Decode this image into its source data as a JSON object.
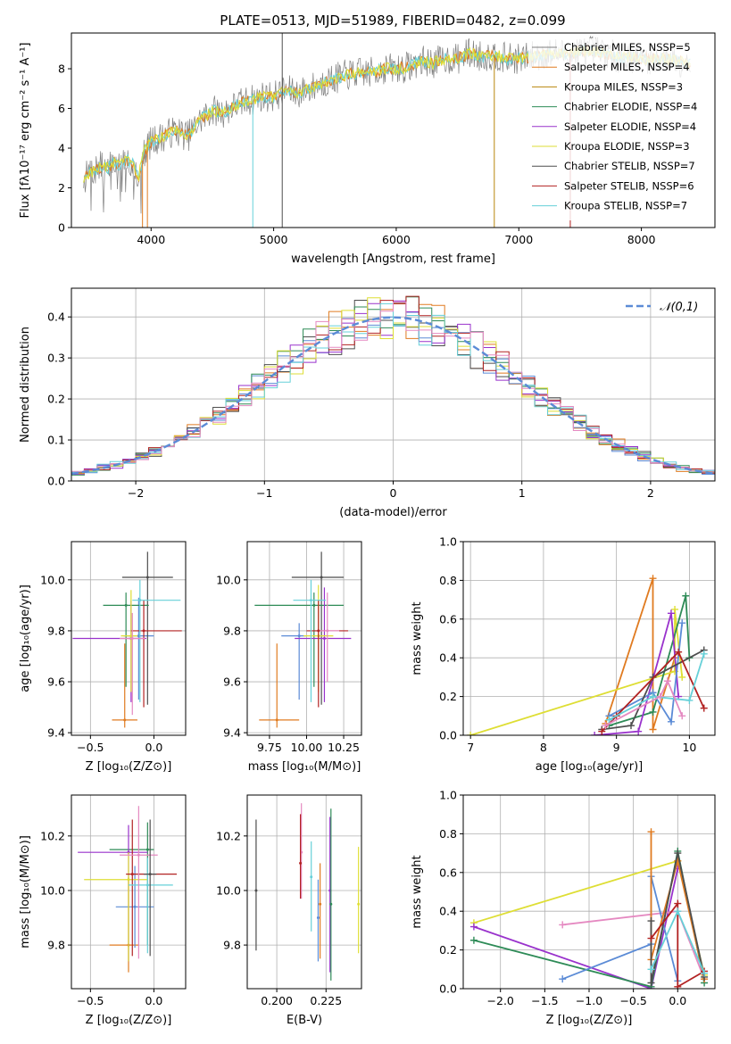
{
  "title": "PLATE=0513, MJD=51989, FIBERID=0482, z=0.099",
  "colors": [
    "#ff7f0e",
    "#4e4e4e",
    "#b8860b",
    "#2e8b57",
    "#9932cc",
    "#dede34",
    "#555555",
    "#b22222",
    "#66d0d8"
  ],
  "chart_data": [
    {
      "type": "line",
      "id": "spectrum",
      "xlabel": "wavelength [Angstrom, rest frame]",
      "ylabel": "Flux [fλ10⁻¹⁷ erg cm⁻² s⁻¹ A⁻¹]",
      "xlim": [
        3350,
        8600
      ],
      "ylim": [
        0,
        9.8
      ],
      "xticks": [
        4000,
        5000,
        6000,
        7000,
        8000
      ],
      "yticks": [
        0,
        2,
        4,
        6,
        8
      ],
      "grid": false,
      "legend_position": "top-right",
      "legend": [
        "Chabrier MILES, NSSP=5",
        "Salpeter MILES, NSSP=4",
        "Kroupa MILES, NSSP=3",
        "Chabrier ELODIE, NSSP=4",
        "Salpeter ELODIE, NSSP=4",
        "Kroupa ELODIE, NSSP=3",
        "Chabrier STELIB, NSSP=7",
        "Salpeter STELIB, NSSP=6",
        "Kroupa STELIB, NSSP=7"
      ],
      "legend_colors": [
        "#7f7f7f",
        "#e07b20",
        "#b8860b",
        "#2e8b57",
        "#9932cc",
        "#dede34",
        "#4e4e4e",
        "#b22222",
        "#66d0d8"
      ],
      "data_series": {
        "name": "data",
        "x": [
          3450,
          3500,
          3550,
          3600,
          3650,
          3700,
          3750,
          3800,
          3850,
          3900,
          3950,
          4000,
          4100,
          4200,
          4300,
          4400,
          4500,
          4600,
          4700,
          4800,
          4900,
          5000,
          5100,
          5200,
          5300,
          5400,
          5500,
          5600,
          5700,
          5800,
          5900,
          6000,
          6100,
          6200,
          6300,
          6400,
          6500,
          6600,
          6700,
          6800,
          6900,
          7000,
          7100,
          7200,
          7300,
          7400,
          7500,
          7600,
          7700,
          7800,
          7900,
          8000,
          8100,
          8200,
          8300,
          8400
        ],
        "y": [
          2.4,
          2.8,
          2.9,
          3.1,
          3.0,
          3.3,
          3.1,
          3.4,
          3.2,
          2.6,
          3.9,
          4.3,
          4.6,
          4.9,
          4.6,
          5.4,
          5.9,
          5.8,
          6.2,
          6.4,
          6.6,
          6.6,
          6.9,
          6.8,
          7.0,
          7.3,
          7.5,
          7.7,
          7.8,
          7.8,
          8.0,
          8.0,
          8.1,
          8.4,
          8.3,
          8.5,
          8.5,
          8.8,
          8.6,
          8.7,
          8.5,
          8.5,
          8.6,
          8.7,
          8.8,
          8.7,
          8.9,
          8.9,
          8.8,
          8.6,
          8.6,
          8.5,
          8.5,
          8.5,
          8.4,
          8.3
        ]
      },
      "model_series_x_range": [
        3450,
        7300
      ],
      "notable_lines_at": [
        3930,
        3970,
        4830,
        5070,
        6800,
        7420
      ]
    },
    {
      "type": "bar",
      "id": "residuals",
      "xlabel": "(data-model)/error",
      "ylabel": "Normed distribution",
      "xlim": [
        -2.5,
        2.5
      ],
      "ylim": [
        0,
        0.47
      ],
      "xticks": [
        -2,
        -1,
        0,
        1,
        2
      ],
      "yticks": [
        0.0,
        0.1,
        0.2,
        0.3,
        0.4
      ],
      "grid": true,
      "legend_position": "top-right",
      "gaussian_label": "𝒩(0,1)",
      "gaussian_color": "#5b8bd6",
      "bin_width": 0.1,
      "bin_start": -2.5
    },
    {
      "type": "scatter",
      "id": "age-vs-Z",
      "xlabel": "Z [log₁₀(Z/Z⊙)]",
      "ylabel": "age  [log₁₀(age/yr)]",
      "xlim": [
        -0.65,
        0.25
      ],
      "ylim": [
        9.39,
        10.15
      ],
      "xticks": [
        -0.5,
        0.0
      ],
      "yticks": [
        9.4,
        9.6,
        9.8,
        10.0
      ],
      "grid": true,
      "points": [
        {
          "x": -0.23,
          "y": 9.45,
          "xerr": [
            0.1,
            0.1
          ],
          "yerr": [
            0.03,
            0.3
          ],
          "color": "#e07b20"
        },
        {
          "x": -0.12,
          "y": 9.78,
          "xerr": [
            0.12,
            0.12
          ],
          "yerr": [
            0.25,
            0.15
          ],
          "color": "#5b8bd6"
        },
        {
          "x": -0.05,
          "y": 10.01,
          "xerr": [
            0.2,
            0.2
          ],
          "yerr": [
            0.5,
            0.1
          ],
          "color": "#4e4e4e"
        },
        {
          "x": -0.22,
          "y": 9.9,
          "xerr": [
            0.18,
            0.18
          ],
          "yerr": [
            0.32,
            0.05
          ],
          "color": "#2e8b57"
        },
        {
          "x": -0.18,
          "y": 9.77,
          "xerr": [
            0.46,
            0.12
          ],
          "yerr": [
            0.25,
            0.15
          ],
          "color": "#9932cc"
        },
        {
          "x": -0.18,
          "y": 9.78,
          "xerr": [
            0.08,
            0.05
          ],
          "yerr": [
            0.22,
            0.18
          ],
          "color": "#dede34"
        },
        {
          "x": -0.08,
          "y": 9.8,
          "xerr": [
            0.1,
            0.3
          ],
          "yerr": [
            0.3,
            0.12
          ],
          "color": "#b22222"
        },
        {
          "x": -0.11,
          "y": 9.92,
          "xerr": [
            0.06,
            0.32
          ],
          "yerr": [
            0.4,
            0.08
          ],
          "color": "#66d0d8"
        },
        {
          "x": -0.17,
          "y": 9.77,
          "xerr": [
            0.1,
            0.1
          ],
          "yerr": [
            0.3,
            0.1
          ],
          "color": "#e589c1"
        }
      ]
    },
    {
      "type": "scatter",
      "id": "age-vs-mass",
      "xlabel": "mass [log₁₀(M/M⊙)]",
      "ylabel": "",
      "xlim": [
        9.6,
        10.37
      ],
      "ylim": [
        9.39,
        10.15
      ],
      "xticks": [
        9.75,
        10.0,
        10.25
      ],
      "yticks": [
        9.4,
        9.6,
        9.8,
        10.0
      ],
      "grid": true,
      "points": [
        {
          "x": 9.8,
          "y": 9.45,
          "xerr": [
            0.12,
            0.15
          ],
          "yerr": [
            0.03,
            0.3
          ],
          "color": "#e07b20"
        },
        {
          "x": 9.95,
          "y": 9.78,
          "xerr": [
            0.12,
            0.05
          ],
          "yerr": [
            0.25,
            0.05
          ],
          "color": "#5b8bd6"
        },
        {
          "x": 10.1,
          "y": 10.01,
          "xerr": [
            0.2,
            0.15
          ],
          "yerr": [
            0.5,
            0.1
          ],
          "color": "#4e4e4e"
        },
        {
          "x": 10.05,
          "y": 9.9,
          "xerr": [
            0.4,
            0.2
          ],
          "yerr": [
            0.32,
            0.05
          ],
          "color": "#2e8b57"
        },
        {
          "x": 10.12,
          "y": 9.77,
          "xerr": [
            0.2,
            0.18
          ],
          "yerr": [
            0.25,
            0.2
          ],
          "color": "#9932cc"
        },
        {
          "x": 10.08,
          "y": 9.78,
          "xerr": [
            0.1,
            0.1
          ],
          "yerr": [
            0.22,
            0.2
          ],
          "color": "#dede34"
        },
        {
          "x": 10.08,
          "y": 9.8,
          "xerr": [
            0.08,
            0.2
          ],
          "yerr": [
            0.3,
            0.12
          ],
          "color": "#b22222"
        },
        {
          "x": 10.03,
          "y": 9.92,
          "xerr": [
            0.12,
            0.1
          ],
          "yerr": [
            0.4,
            0.08
          ],
          "color": "#66d0d8"
        },
        {
          "x": 10.14,
          "y": 9.8,
          "xerr": [
            0.05,
            0.08
          ],
          "yerr": [
            0.2,
            0.15
          ],
          "color": "#e589c1"
        }
      ]
    },
    {
      "type": "line",
      "id": "massweight-vs-age",
      "xlabel": "age  [log₁₀(age/yr)]",
      "ylabel": "mass weight",
      "xlim": [
        6.9,
        10.35
      ],
      "ylim": [
        0,
        1.0
      ],
      "xticks": [
        7,
        8,
        9,
        10
      ],
      "yticks": [
        0.0,
        0.2,
        0.4,
        0.6,
        0.8,
        1.0
      ],
      "grid": true,
      "series": [
        {
          "color": "#e07b20",
          "x": [
            8.85,
            9.5,
            9.5,
            9.8
          ],
          "y": [
            0.06,
            0.81,
            0.03,
            0.4
          ]
        },
        {
          "color": "#dede34",
          "x": [
            7.0,
            9.8,
            9.8,
            9.9
          ],
          "y": [
            0.0,
            0.33,
            0.65,
            0.3
          ]
        },
        {
          "color": "#2e8b57",
          "x": [
            8.9,
            9.5,
            9.95,
            10.0
          ],
          "y": [
            0.05,
            0.12,
            0.72,
            0.4
          ]
        },
        {
          "color": "#9932cc",
          "x": [
            8.7,
            9.3,
            9.75,
            9.85
          ],
          "y": [
            0.0,
            0.02,
            0.63,
            0.2
          ]
        },
        {
          "color": "#5b8bd6",
          "x": [
            8.9,
            9.5,
            9.75,
            9.9
          ],
          "y": [
            0.1,
            0.22,
            0.07,
            0.58
          ]
        },
        {
          "color": "#4e4e4e",
          "x": [
            8.8,
            9.2,
            9.5,
            10.2
          ],
          "y": [
            0.03,
            0.05,
            0.3,
            0.44
          ]
        },
        {
          "color": "#b22222",
          "x": [
            8.8,
            9.0,
            9.85,
            10.2
          ],
          "y": [
            0.02,
            0.1,
            0.43,
            0.14
          ]
        },
        {
          "color": "#66d0d8",
          "x": [
            8.9,
            9.5,
            10.0,
            10.2
          ],
          "y": [
            0.08,
            0.2,
            0.18,
            0.42
          ]
        },
        {
          "color": "#e589c1",
          "x": [
            8.85,
            9.6,
            9.7,
            9.9
          ],
          "y": [
            0.05,
            0.2,
            0.28,
            0.1
          ]
        }
      ]
    },
    {
      "type": "scatter",
      "id": "mass-vs-Z",
      "xlabel": "Z [log₁₀(Z/Z⊙)]",
      "ylabel": "mass [log₁₀(M/M⊙)]",
      "xlim": [
        -0.65,
        0.25
      ],
      "ylim": [
        9.64,
        10.35
      ],
      "xticks": [
        -0.5,
        0.0
      ],
      "yticks": [
        9.8,
        10.0,
        10.2
      ],
      "grid": true,
      "points": [
        {
          "x": -0.2,
          "y": 9.8,
          "xerr": [
            0.15,
            0.08
          ],
          "yerr": [
            0.1,
            0.25
          ],
          "color": "#e07b20"
        },
        {
          "x": -0.15,
          "y": 9.94,
          "xerr": [
            0.15,
            0.15
          ],
          "yerr": [
            0.15,
            0.15
          ],
          "color": "#5b8bd6"
        },
        {
          "x": -0.05,
          "y": 10.15,
          "xerr": [
            0.3,
            0.05
          ],
          "yerr": [
            0.35,
            0.1
          ],
          "color": "#2e8b57"
        },
        {
          "x": -0.2,
          "y": 10.14,
          "xerr": [
            0.4,
            0.15
          ],
          "yerr": [
            0.4,
            0.1
          ],
          "color": "#9932cc"
        },
        {
          "x": -0.2,
          "y": 10.04,
          "xerr": [
            0.35,
            0.15
          ],
          "yerr": [
            0.3,
            0.1
          ],
          "color": "#dede34"
        },
        {
          "x": -0.17,
          "y": 10.06,
          "xerr": [
            0.05,
            0.35
          ],
          "yerr": [
            0.3,
            0.2
          ],
          "color": "#b22222"
        },
        {
          "x": -0.05,
          "y": 10.02,
          "xerr": [
            0.15,
            0.2
          ],
          "yerr": [
            0.25,
            0.1
          ],
          "color": "#66d0d8"
        },
        {
          "x": -0.12,
          "y": 10.13,
          "xerr": [
            0.15,
            0.15
          ],
          "yerr": [
            0.38,
            0.18
          ],
          "color": "#e589c1"
        },
        {
          "x": -0.03,
          "y": 10.06,
          "xerr": [
            0.05,
            0.05
          ],
          "yerr": [
            0.3,
            0.2
          ],
          "color": "#4e4e4e"
        }
      ]
    },
    {
      "type": "scatter",
      "id": "mass-vs-ebv",
      "xlabel": "E(B-V)",
      "ylabel": "",
      "xlim": [
        0.185,
        0.243
      ],
      "ylim": [
        9.64,
        10.35
      ],
      "xticks": [
        0.2,
        0.225
      ],
      "yticks": [
        9.8,
        10.0,
        10.2
      ],
      "grid": true,
      "points": [
        {
          "x": 0.1895,
          "y": 10.0,
          "yerr": [
            0.22,
            0.26
          ],
          "color": "#4e4e4e"
        },
        {
          "x": 0.2125,
          "y": 10.14,
          "yerr": [
            0.17,
            0.18
          ],
          "color": "#e589c1"
        },
        {
          "x": 0.212,
          "y": 10.1,
          "yerr": [
            0.13,
            0.18
          ],
          "color": "#b22222"
        },
        {
          "x": 0.2175,
          "y": 10.05,
          "yerr": [
            0.2,
            0.13
          ],
          "color": "#66d0d8"
        },
        {
          "x": 0.221,
          "y": 9.9,
          "yerr": [
            0.16,
            0.14
          ],
          "color": "#5b8bd6"
        },
        {
          "x": 0.222,
          "y": 9.95,
          "yerr": [
            0.2,
            0.15
          ],
          "color": "#e07b20"
        },
        {
          "x": 0.227,
          "y": 10.0,
          "yerr": [
            0.3,
            0.27
          ],
          "color": "#9932cc"
        },
        {
          "x": 0.2275,
          "y": 9.95,
          "yerr": [
            0.28,
            0.35
          ],
          "color": "#2e8b57"
        },
        {
          "x": 0.2415,
          "y": 9.95,
          "yerr": [
            0.18,
            0.21
          ],
          "color": "#dede34"
        }
      ]
    },
    {
      "type": "line",
      "id": "massweight-vs-Z",
      "xlabel": "Z [log₁₀(Z/Z⊙)]",
      "ylabel": "mass weight",
      "xlim": [
        -2.42,
        0.42
      ],
      "ylim": [
        0,
        1.0
      ],
      "xticks": [
        -2.0,
        -1.5,
        -1.0,
        -0.5,
        0.0
      ],
      "yticks": [
        0.0,
        0.2,
        0.4,
        0.6,
        0.8,
        1.0
      ],
      "grid": true,
      "series": [
        {
          "color": "#dede34",
          "x": [
            -2.3,
            0.0,
            0.3
          ],
          "y": [
            0.34,
            0.66,
            0.07
          ]
        },
        {
          "color": "#9932cc",
          "x": [
            -2.3,
            -0.3,
            0.0
          ],
          "y": [
            0.32,
            0.0,
            0.62
          ]
        },
        {
          "color": "#2e8b57",
          "x": [
            -2.3,
            -0.3,
            0.0,
            0.3
          ],
          "y": [
            0.25,
            0.01,
            0.71,
            0.03
          ]
        },
        {
          "color": "#e589c1",
          "x": [
            -1.3,
            0.0,
            0.3
          ],
          "y": [
            0.33,
            0.4,
            0.05
          ]
        },
        {
          "color": "#5b8bd6",
          "x": [
            -1.3,
            -0.3,
            -0.3,
            0.0
          ],
          "y": [
            0.05,
            0.23,
            0.58,
            0.04
          ]
        },
        {
          "color": "#e07b20",
          "x": [
            -0.3,
            -0.3,
            0.0,
            0.3
          ],
          "y": [
            0.81,
            0.15,
            0.66,
            0.05
          ]
        },
        {
          "color": "#4e4e4e",
          "x": [
            -0.3,
            -0.3,
            0.0,
            0.3
          ],
          "y": [
            0.35,
            0.03,
            0.7,
            0.06
          ]
        },
        {
          "color": "#b22222",
          "x": [
            -0.3,
            0.0,
            0.0,
            0.3
          ],
          "y": [
            0.26,
            0.44,
            0.01,
            0.09
          ]
        },
        {
          "color": "#66d0d8",
          "x": [
            -0.3,
            0.0,
            0.3
          ],
          "y": [
            0.1,
            0.4,
            0.08
          ]
        }
      ]
    }
  ]
}
